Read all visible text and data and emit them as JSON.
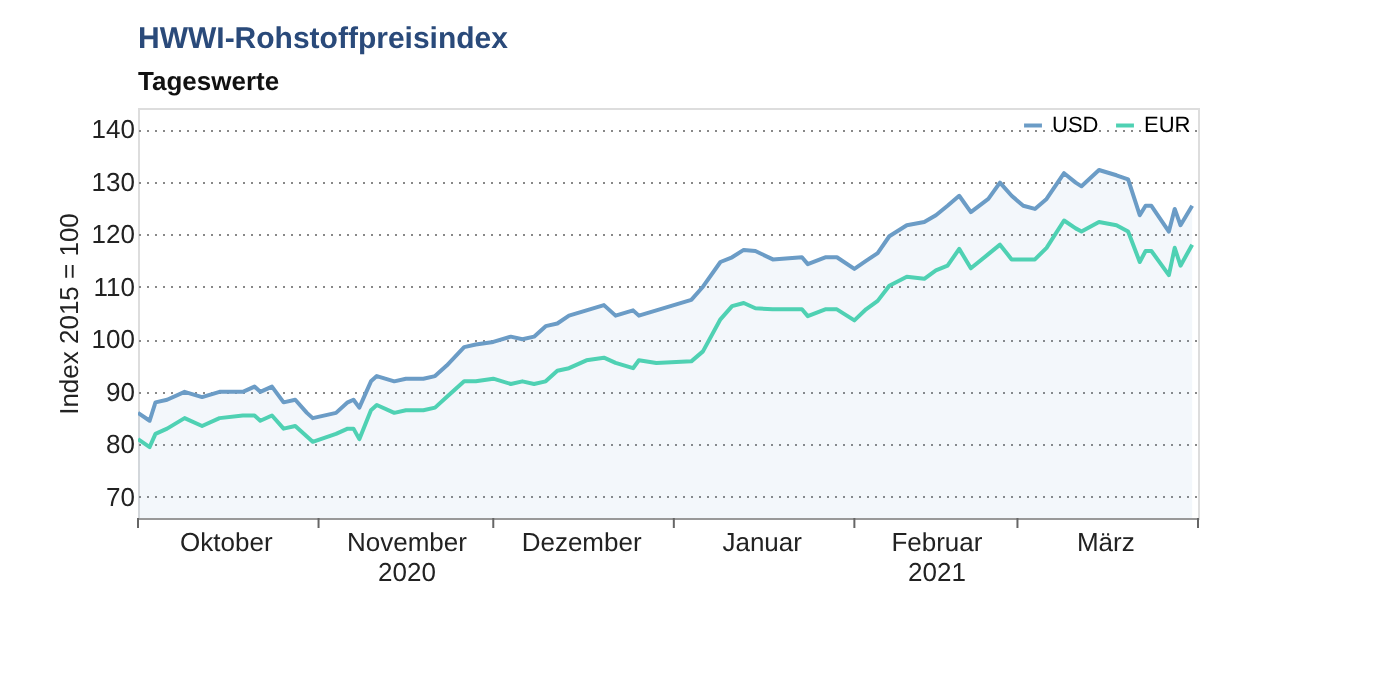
{
  "chart_data": {
    "type": "line",
    "title": "HWWI-Rohstoffpreisindex",
    "subtitle": "Tageswerte",
    "ylabel": "Index 2015 = 100",
    "ylim": [
      66,
      144
    ],
    "yticks": [
      70,
      80,
      90,
      100,
      110,
      120,
      130,
      140
    ],
    "grid": "y",
    "legend": "top right",
    "xlim": [
      "2020-10-01",
      "2021-04-01"
    ],
    "xticks": [
      {
        "value": "2020-10-01",
        "label": null
      },
      {
        "value": "2020-10-16",
        "label": "Oktober"
      },
      {
        "value": "2020-11-01",
        "label": null
      },
      {
        "value": "2020-11-16",
        "label": "November\n2020"
      },
      {
        "value": "2020-12-01",
        "label": null
      },
      {
        "value": "2020-12-16",
        "label": "Dezember"
      },
      {
        "value": "2021-01-01",
        "label": null
      },
      {
        "value": "2021-01-16",
        "label": "Januar"
      },
      {
        "value": "2021-02-01",
        "label": null
      },
      {
        "value": "2021-02-15",
        "label": "Februar\n2021"
      },
      {
        "value": "2021-03-01",
        "label": null
      },
      {
        "value": "2021-03-16",
        "label": "März"
      },
      {
        "value": "2021-04-01",
        "label": null
      }
    ],
    "x": [
      "2020-10-01",
      "2020-10-03",
      "2020-10-04",
      "2020-10-06",
      "2020-10-09",
      "2020-10-12",
      "2020-10-15",
      "2020-10-19",
      "2020-10-21",
      "2020-10-22",
      "2020-10-24",
      "2020-10-26",
      "2020-10-28",
      "2020-10-30",
      "2020-10-31",
      "2020-11-04",
      "2020-11-06",
      "2020-11-07",
      "2020-11-08",
      "2020-11-10",
      "2020-11-11",
      "2020-11-14",
      "2020-11-16",
      "2020-11-19",
      "2020-11-21",
      "2020-11-23",
      "2020-11-26",
      "2020-11-28",
      "2020-12-01",
      "2020-12-04",
      "2020-12-06",
      "2020-12-08",
      "2020-12-10",
      "2020-12-12",
      "2020-12-14",
      "2020-12-17",
      "2020-12-20",
      "2020-12-22",
      "2020-12-25",
      "2020-12-26",
      "2020-12-29",
      "2021-01-04",
      "2021-01-06",
      "2021-01-09",
      "2021-01-11",
      "2021-01-13",
      "2021-01-15",
      "2021-01-18",
      "2021-01-23",
      "2021-01-24",
      "2021-01-27",
      "2021-01-29",
      "2021-02-01",
      "2021-02-03",
      "2021-02-05",
      "2021-02-07",
      "2021-02-10",
      "2021-02-13",
      "2021-02-15",
      "2021-02-17",
      "2021-02-19",
      "2021-02-21",
      "2021-02-24",
      "2021-02-26",
      "2021-02-28",
      "2021-03-02",
      "2021-03-04",
      "2021-03-06",
      "2021-03-09",
      "2021-03-11",
      "2021-03-12",
      "2021-03-15",
      "2021-03-18",
      "2021-03-20",
      "2021-03-22",
      "2021-03-23",
      "2021-03-24",
      "2021-03-27",
      "2021-03-28",
      "2021-03-29",
      "2021-03-31"
    ],
    "series": [
      {
        "name": "USD",
        "type": "area",
        "color": "#6b9cc6",
        "values": [
          86,
          84.5,
          88,
          88.5,
          90,
          89,
          90,
          90,
          91,
          90,
          91,
          88,
          88.5,
          86,
          85,
          86,
          88,
          88.5,
          87,
          92,
          93,
          92,
          92.5,
          92.5,
          93,
          95,
          98.5,
          99,
          99.5,
          100.5,
          100,
          100.5,
          102.5,
          103,
          104.5,
          105.5,
          106.5,
          104.5,
          105.5,
          104.5,
          105.5,
          107.5,
          110,
          114.7,
          115.6,
          117,
          116.8,
          115.2,
          115.6,
          114.3,
          115.6,
          115.6,
          113.4,
          114.9,
          116.4,
          119.6,
          121.7,
          122.3,
          123.6,
          125.4,
          127.3,
          124.2,
          126.7,
          129.8,
          127.3,
          125.4,
          124.8,
          126.7,
          131.6,
          129.8,
          129.1,
          132.2,
          131.2,
          130.4,
          123.6,
          125.4,
          125.4,
          120.5,
          124.8,
          121.7,
          125.4
        ]
      },
      {
        "name": "EUR",
        "color": "#4fd1b3",
        "values": [
          81,
          79.5,
          82,
          83,
          85,
          83.5,
          85,
          85.5,
          85.5,
          84.5,
          85.5,
          83,
          83.5,
          81.5,
          80.5,
          82,
          83,
          83,
          81,
          86.5,
          87.5,
          86,
          86.5,
          86.5,
          87,
          89,
          92,
          92,
          92.5,
          91.5,
          92,
          91.5,
          92,
          94,
          94.5,
          96,
          96.5,
          95.5,
          94.5,
          96,
          95.5,
          95.8,
          97.7,
          103.8,
          106.3,
          106.9,
          105.9,
          105.7,
          105.7,
          104.4,
          105.7,
          105.7,
          103.6,
          105.7,
          107.3,
          110.2,
          111.9,
          111.5,
          113.1,
          114,
          117.2,
          113.5,
          116.2,
          118,
          115.2,
          115.2,
          115.2,
          117.4,
          122.6,
          121.1,
          120.5,
          122.3,
          121.7,
          120.5,
          114.7,
          116.8,
          116.8,
          112.2,
          117.4,
          114,
          118
        ]
      }
    ]
  }
}
